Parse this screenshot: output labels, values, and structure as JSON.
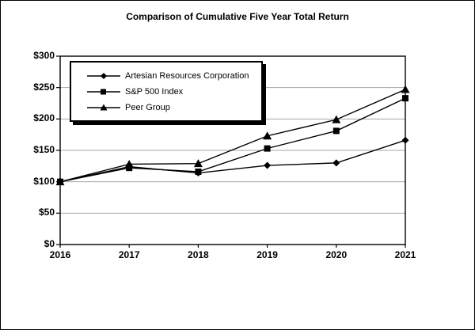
{
  "window": {
    "background_color": "#ffffff",
    "border_color": "#000000",
    "line_color": "#000000",
    "gridline_color": "#a6a6a6"
  },
  "chart_data": {
    "type": "line",
    "title": "Comparison of Cumulative Five Year Total Return",
    "x": [
      2016,
      2017,
      2018,
      2019,
      2020,
      2021
    ],
    "x_tick_labels": [
      "2016",
      "2017",
      "2018",
      "2019",
      "2020",
      "2021"
    ],
    "y_tick_labels": [
      "$300",
      "$250",
      "$200",
      "$150",
      "$100",
      "$50",
      "$0"
    ],
    "ylim": [
      0,
      300
    ],
    "y_tick_step": 50,
    "grid": "horizontal-gray",
    "legend_position": "top-left-inside",
    "legend_shadow": true,
    "series": [
      {
        "name": "Artesian Resources Corporation",
        "marker": "diamond",
        "color": "#000000",
        "values": [
          100,
          124,
          114,
          126,
          130,
          166
        ]
      },
      {
        "name": "S&P 500 Index",
        "marker": "square",
        "color": "#000000",
        "values": [
          100,
          122,
          116,
          153,
          181,
          233
        ]
      },
      {
        "name": "Peer Group",
        "marker": "triangle",
        "color": "#000000",
        "values": [
          100,
          128,
          129,
          173,
          199,
          247
        ]
      }
    ]
  }
}
